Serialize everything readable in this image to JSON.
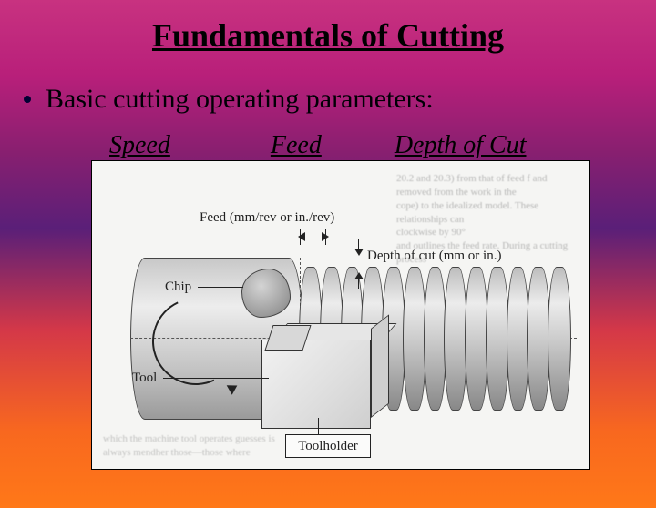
{
  "title": "Fundamentals of Cutting",
  "bullet": "Basic cutting operating parameters:",
  "params": {
    "speed": "Speed",
    "feed": "Feed",
    "depth": "Depth of Cut"
  },
  "figure": {
    "feed_label": "Feed (mm/rev or in./rev)",
    "depth_label": "Depth of cut (mm or in.)",
    "chip_label": "Chip",
    "tool_label": "Tool",
    "toolholder_label": "Toolholder",
    "thread_count": 13,
    "scan_noise_top": "20.2 and 20.3) from that of feed f and\nremoved from the work in the\ncope) to the idealized model. These relationships can\nclockwise by 90°\nand outlines the feed rate. During a cutting process",
    "scan_noise_bottom": "which the machine tool operates\nguesses is always\nmendher those—those where",
    "colors": {
      "cylinder_light": "#ededed",
      "cylinder_dark": "#9a9a9a",
      "border": "#333333",
      "background": "#f5f5f3"
    }
  }
}
